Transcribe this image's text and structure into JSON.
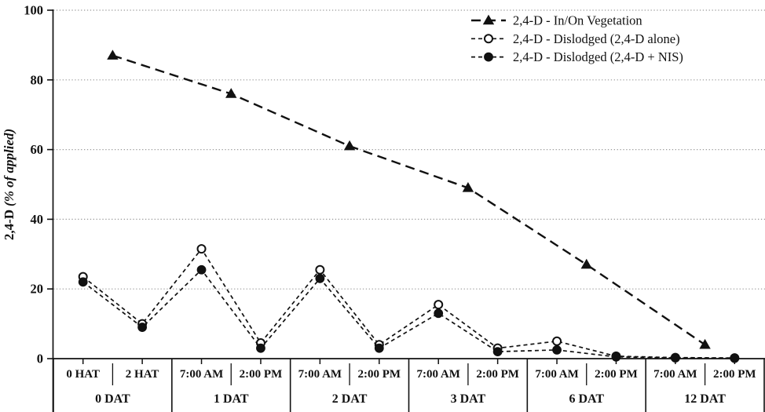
{
  "chart_data": {
    "type": "line",
    "title": "",
    "ylabel": "2,4-D (% of applied)",
    "ylabel_parts": [
      "2,4-D",
      "(% of applied)"
    ],
    "ylim": [
      0,
      100
    ],
    "yticks": [
      0,
      20,
      40,
      60,
      80,
      100
    ],
    "grid": "horizontal-dotted",
    "legend_position": "top-right",
    "x_groups": [
      {
        "label": "0 DAT",
        "slots": [
          "0 HAT",
          "2 HAT"
        ]
      },
      {
        "label": "1 DAT",
        "slots": [
          "7:00 AM",
          "2:00 PM"
        ]
      },
      {
        "label": "2 DAT",
        "slots": [
          "7:00 AM",
          "2:00 PM"
        ]
      },
      {
        "label": "3 DAT",
        "slots": [
          "7:00 AM",
          "2:00 PM"
        ]
      },
      {
        "label": "6 DAT",
        "slots": [
          "7:00 AM",
          "2:00 PM"
        ]
      },
      {
        "label": "12 DAT",
        "slots": [
          "7:00 AM",
          "2:00 PM"
        ]
      }
    ],
    "series": [
      {
        "name": "2,4-D - In/On Vegetation",
        "marker": "filled-triangle",
        "x_mode": "group-centers",
        "dash": "long",
        "values": [
          87,
          76,
          61,
          49,
          27,
          4
        ]
      },
      {
        "name": "2,4-D - Dislodged (2,4-D alone)",
        "marker": "open-circle",
        "x_mode": "slot-centers",
        "dash": "short",
        "values": [
          23.5,
          10,
          31.5,
          4.5,
          25.5,
          4,
          15.5,
          3,
          5,
          0.7,
          0.3,
          0.2
        ]
      },
      {
        "name": "2,4-D - Dislodged (2,4-D + NIS)",
        "marker": "filled-circle",
        "x_mode": "slot-centers",
        "dash": "short",
        "values": [
          22,
          9,
          25.5,
          3,
          23,
          3,
          13,
          2,
          2.5,
          0.5,
          0.2,
          0.1
        ]
      }
    ],
    "colors": {
      "line": "#111111",
      "text": "#111111",
      "grid": "#999999",
      "background": "#ffffff"
    }
  }
}
